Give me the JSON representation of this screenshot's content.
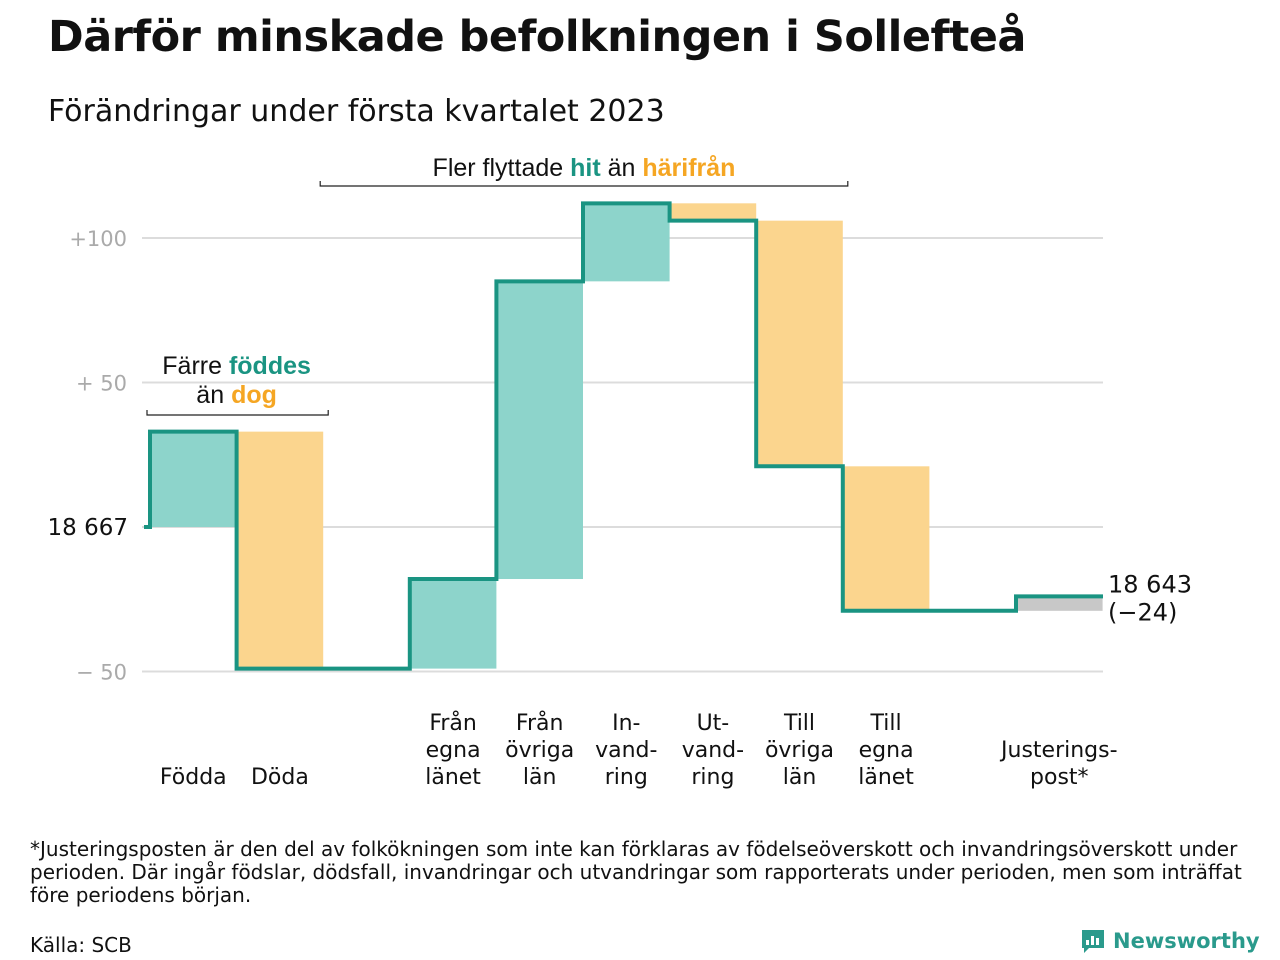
{
  "header": {
    "title": "Därför minskade befolkningen i Sollefteå",
    "subtitle": "Förändringar under första kvartalet 2023"
  },
  "chart_data": {
    "type": "waterfall",
    "start_value": 18667,
    "start_label": "18 667",
    "end_label": "18 643",
    "end_change_label": "(−24)",
    "ylim": [
      -55,
      115
    ],
    "yticks": [
      {
        "value": 100,
        "label": "+100"
      },
      {
        "value": 50,
        "label": "+ 50"
      },
      {
        "value": 0,
        "label": ""
      },
      {
        "value": -50,
        "label": "− 50"
      }
    ],
    "categories": [
      {
        "key": "fodda",
        "label_lines": [
          "Födda"
        ],
        "value": 33,
        "kind": "increase"
      },
      {
        "key": "doda",
        "label_lines": [
          "Döda"
        ],
        "value": -82,
        "kind": "decrease"
      },
      {
        "key": "gap",
        "label_lines": [],
        "value": 0,
        "kind": "gap"
      },
      {
        "key": "fran-egna-lanet",
        "label_lines": [
          "Från",
          "egna",
          "länet"
        ],
        "value": 31,
        "kind": "increase"
      },
      {
        "key": "fran-ovriga-lan",
        "label_lines": [
          "Från",
          "övriga",
          "län"
        ],
        "value": 103,
        "kind": "increase"
      },
      {
        "key": "invandring",
        "label_lines": [
          "In-",
          "vand-",
          "ring"
        ],
        "value": 27,
        "kind": "increase"
      },
      {
        "key": "utvandring",
        "label_lines": [
          "Ut-",
          "vand-",
          "ring"
        ],
        "value": -6,
        "kind": "decrease"
      },
      {
        "key": "till-ovriga-lan",
        "label_lines": [
          "Till",
          "övriga",
          "län"
        ],
        "value": -85,
        "kind": "decrease"
      },
      {
        "key": "till-egna-lanet",
        "label_lines": [
          "Till",
          "egna",
          "länet"
        ],
        "value": -50,
        "kind": "decrease"
      },
      {
        "key": "gap2",
        "label_lines": [],
        "value": 0,
        "kind": "gap"
      },
      {
        "key": "justeringspost",
        "label_lines": [
          "Justerings-",
          "post*"
        ],
        "value": 5,
        "kind": "adjustment"
      }
    ],
    "annotations": {
      "births": {
        "line1": "Färre ",
        "line1_highlight": "föddes",
        "line2": "än ",
        "line2_highlight": "dog"
      },
      "migration": {
        "text": "Fler flyttade ",
        "highlight1": "hit",
        "middle": " än ",
        "highlight2": "härifrån"
      }
    },
    "colors": {
      "increase": "#8dd4cb",
      "decrease": "#fbd58e",
      "adjustment": "#c8c8c8",
      "line": "#1a9482",
      "teal_text": "#1a9482",
      "orange_text": "#f5a623",
      "grid": "#dcdcdc",
      "tick_text": "#aaaaaa"
    }
  },
  "footnote": "*Justeringsposten är den del av folkökningen som inte kan förklaras av födelseöverskott och invandringsöverskott under perioden. Där ingår födslar, dödsfall, invandringar och utvandringar som rapporterats under perioden, men som inträffat före periodens början.",
  "source": "Källa: SCB",
  "brand": {
    "name": "Newsworthy",
    "logo_icon": "newsworthy-logo-icon"
  }
}
